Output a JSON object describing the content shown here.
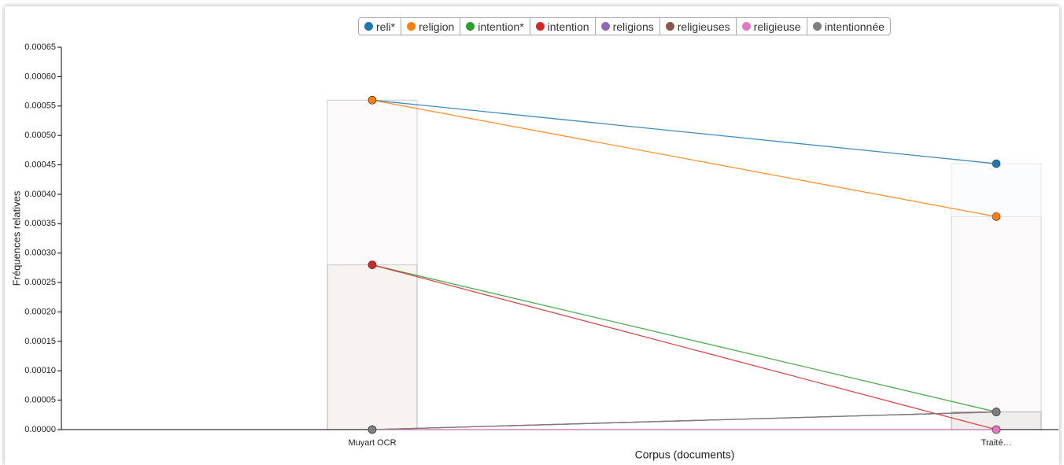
{
  "chart_data": {
    "type": "line",
    "ylabel": "Fréquences relatives",
    "xlabel": "Corpus (documents)",
    "categories": [
      "Muyart OCR",
      "Traité…"
    ],
    "series": [
      {
        "name": "reli*",
        "color": "#1f77b4",
        "values": [
          0.00056,
          0.000452
        ]
      },
      {
        "name": "religion",
        "color": "#ff7f0e",
        "values": [
          0.00056,
          0.000362
        ]
      },
      {
        "name": "intention*",
        "color": "#2ca02c",
        "values": [
          0.00028,
          3e-05
        ]
      },
      {
        "name": "intention",
        "color": "#d62728",
        "values": [
          0.00028,
          0
        ]
      },
      {
        "name": "religions",
        "color": "#9467bd",
        "values": [
          0,
          3e-05
        ]
      },
      {
        "name": "religieuses",
        "color": "#8c564b",
        "values": [
          0,
          3e-05
        ]
      },
      {
        "name": "religieuse",
        "color": "#e377c2",
        "values": [
          0,
          0
        ]
      },
      {
        "name": "intentionnée",
        "color": "#7f7f7f",
        "values": [
          0,
          3e-05
        ]
      }
    ],
    "ylim": [
      0,
      0.00065
    ],
    "yticks": [
      {
        "value": 0,
        "label": "0.00000"
      },
      {
        "value": 5e-05,
        "label": "0.00005"
      },
      {
        "value": 0.0001,
        "label": "0.00010"
      },
      {
        "value": 0.00015,
        "label": "0.00015"
      },
      {
        "value": 0.0002,
        "label": "0.00020"
      },
      {
        "value": 0.00025,
        "label": "0.00025"
      },
      {
        "value": 0.0003,
        "label": "0.00030"
      },
      {
        "value": 0.00035,
        "label": "0.00035"
      },
      {
        "value": 0.0004,
        "label": "0.00040"
      },
      {
        "value": 0.00045,
        "label": "0.00045"
      },
      {
        "value": 0.0005,
        "label": "0.00050"
      },
      {
        "value": 0.00055,
        "label": "0.00055"
      },
      {
        "value": 0.0006,
        "label": "0.00060"
      },
      {
        "value": 0.00065,
        "label": "0.00065"
      }
    ],
    "legend": "top"
  }
}
